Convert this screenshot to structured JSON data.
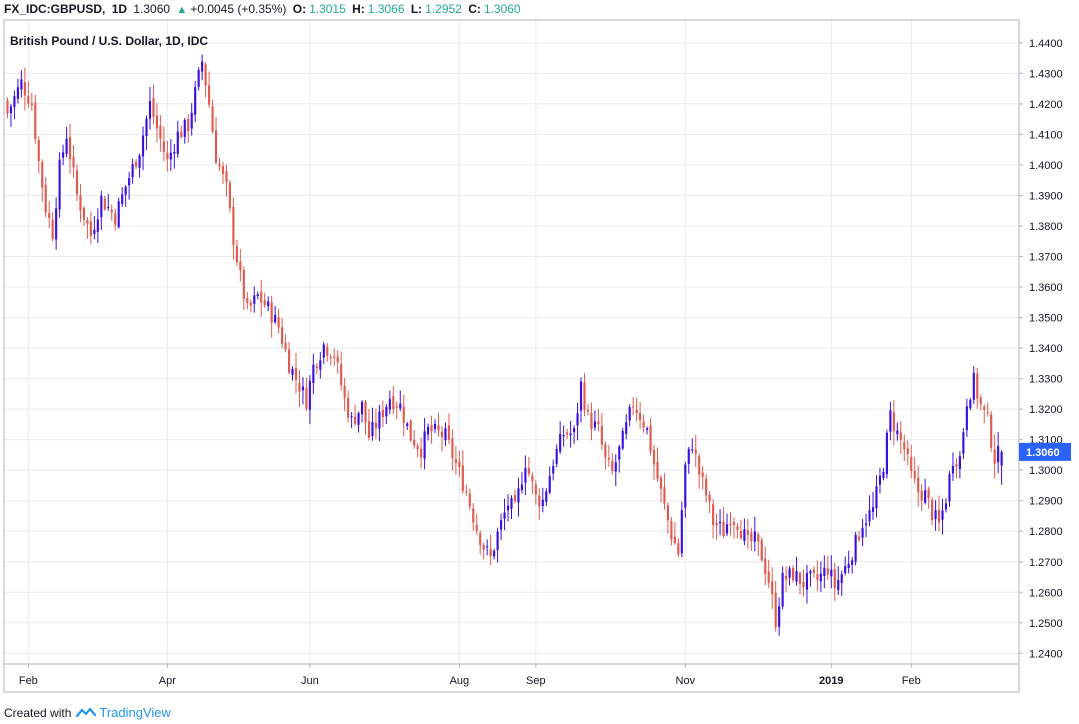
{
  "header": {
    "symbol": "FX_IDC:GBPUSD,",
    "interval": "1D",
    "last": "1.3060",
    "change": "+0.0045 (+0.35%)",
    "open_label": "O:",
    "open": "1.3015",
    "high_label": "H:",
    "high": "1.3066",
    "low_label": "L:",
    "low": "1.2952",
    "close_label": "C:",
    "close": "1.3060"
  },
  "footer": {
    "created_with": "Created with",
    "brand": "TradingView"
  },
  "colors": {
    "up": "#3a0fe0",
    "down": "#e05a4f",
    "grid": "#e8ecf1",
    "price_badge": "#2962ff"
  },
  "chart_data": {
    "type": "candlestick",
    "title": "British Pound / U.S. Dollar, 1D, IDC",
    "price_label": "1.3060",
    "y_ticks": [
      "1.2400",
      "1.2500",
      "1.2600",
      "1.2700",
      "1.2800",
      "1.2900",
      "1.3000",
      "1.3100",
      "1.3200",
      "1.3300",
      "1.3400",
      "1.3500",
      "1.3600",
      "1.3700",
      "1.3800",
      "1.3900",
      "1.4000",
      "1.4100",
      "1.4200",
      "1.4300",
      "1.4400"
    ],
    "x_ticks": [
      {
        "label": "Feb",
        "index": 6
      },
      {
        "label": "Apr",
        "index": 46
      },
      {
        "label": "Jun",
        "index": 87
      },
      {
        "label": "Aug",
        "index": 130
      },
      {
        "label": "Sep",
        "index": 152
      },
      {
        "label": "Nov",
        "index": 195
      },
      {
        "label": "2019",
        "index": 237,
        "bold": true
      },
      {
        "label": "Feb",
        "index": 260
      }
    ],
    "ylim": [
      1.2365,
      1.4475
    ],
    "x_range": [
      -1,
      291
    ],
    "anchors": [
      [
        0,
        1.417
      ],
      [
        4,
        1.427
      ],
      [
        7,
        1.42
      ],
      [
        9,
        1.401
      ],
      [
        11,
        1.386
      ],
      [
        13,
        1.378
      ],
      [
        15,
        1.399
      ],
      [
        17,
        1.41
      ],
      [
        20,
        1.39
      ],
      [
        24,
        1.377
      ],
      [
        27,
        1.389
      ],
      [
        31,
        1.383
      ],
      [
        34,
        1.393
      ],
      [
        38,
        1.405
      ],
      [
        41,
        1.42
      ],
      [
        43,
        1.412
      ],
      [
        46,
        1.401
      ],
      [
        49,
        1.41
      ],
      [
        52,
        1.413
      ],
      [
        56,
        1.434
      ],
      [
        58,
        1.42
      ],
      [
        60,
        1.403
      ],
      [
        63,
        1.392
      ],
      [
        65,
        1.376
      ],
      [
        67,
        1.363
      ],
      [
        69,
        1.352
      ],
      [
        72,
        1.357
      ],
      [
        75,
        1.353
      ],
      [
        78,
        1.347
      ],
      [
        81,
        1.335
      ],
      [
        83,
        1.33
      ],
      [
        86,
        1.323
      ],
      [
        88,
        1.334
      ],
      [
        91,
        1.341
      ],
      [
        94,
        1.338
      ],
      [
        97,
        1.323
      ],
      [
        99,
        1.316
      ],
      [
        102,
        1.321
      ],
      [
        104,
        1.311
      ],
      [
        107,
        1.317
      ],
      [
        110,
        1.324
      ],
      [
        113,
        1.321
      ],
      [
        116,
        1.311
      ],
      [
        119,
        1.307
      ],
      [
        121,
        1.313
      ],
      [
        124,
        1.312
      ],
      [
        126,
        1.311
      ],
      [
        129,
        1.302
      ],
      [
        132,
        1.293
      ],
      [
        135,
        1.281
      ],
      [
        137,
        1.275
      ],
      [
        139,
        1.271
      ],
      [
        141,
        1.279
      ],
      [
        144,
        1.289
      ],
      [
        146,
        1.287
      ],
      [
        149,
        1.303
      ],
      [
        152,
        1.291
      ],
      [
        154,
        1.29
      ],
      [
        157,
        1.303
      ],
      [
        160,
        1.312
      ],
      [
        163,
        1.312
      ],
      [
        165,
        1.328
      ],
      [
        167,
        1.317
      ],
      [
        170,
        1.313
      ],
      [
        172,
        1.303
      ],
      [
        174,
        1.299
      ],
      [
        177,
        1.31
      ],
      [
        180,
        1.322
      ],
      [
        182,
        1.318
      ],
      [
        184,
        1.313
      ],
      [
        186,
        1.302
      ],
      [
        189,
        1.288
      ],
      [
        191,
        1.279
      ],
      [
        193,
        1.273
      ],
      [
        195,
        1.301
      ],
      [
        197,
        1.309
      ],
      [
        199,
        1.299
      ],
      [
        201,
        1.292
      ],
      [
        203,
        1.283
      ],
      [
        206,
        1.28
      ],
      [
        208,
        1.285
      ],
      [
        210,
        1.283
      ],
      [
        213,
        1.276
      ],
      [
        215,
        1.277
      ],
      [
        217,
        1.272
      ],
      [
        219,
        1.264
      ],
      [
        221,
        1.251
      ],
      [
        223,
        1.264
      ],
      [
        226,
        1.266
      ],
      [
        229,
        1.263
      ],
      [
        231,
        1.264
      ],
      [
        233,
        1.264
      ],
      [
        236,
        1.268
      ],
      [
        238,
        1.262
      ],
      [
        241,
        1.268
      ],
      [
        244,
        1.276
      ],
      [
        246,
        1.283
      ],
      [
        249,
        1.287
      ],
      [
        252,
        1.302
      ],
      [
        254,
        1.318
      ],
      [
        256,
        1.312
      ],
      [
        258,
        1.307
      ],
      [
        260,
        1.298
      ],
      [
        262,
        1.293
      ],
      [
        264,
        1.292
      ],
      [
        266,
        1.286
      ],
      [
        268,
        1.282
      ],
      [
        270,
        1.291
      ],
      [
        272,
        1.304
      ],
      [
        274,
        1.304
      ],
      [
        276,
        1.323
      ],
      [
        278,
        1.329
      ],
      [
        280,
        1.321
      ],
      [
        282,
        1.316
      ],
      [
        284,
        1.304
      ],
      [
        286,
        1.306
      ]
    ],
    "last_candle": {
      "open": 1.3015,
      "high": 1.3066,
      "low": 1.2952,
      "close": 1.306
    }
  }
}
